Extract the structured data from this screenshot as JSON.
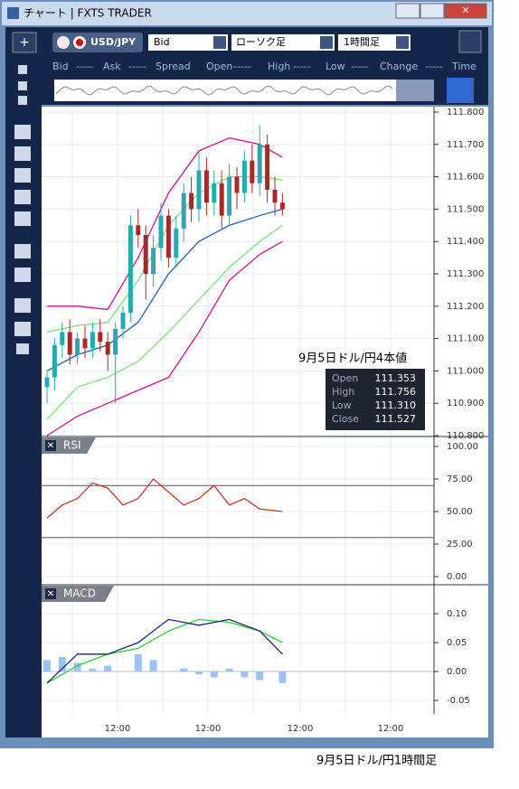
{
  "window": {
    "title": "チャート | FXTS TRADER"
  },
  "toolbar": {
    "symbol": "USD/JPY",
    "price_type": "Bid",
    "chart_type": "ローソク足",
    "period": "1時間足"
  },
  "quote_bar": [
    "Bid",
    "-----",
    "Ask",
    "-----",
    "Spread",
    "Open",
    "-----",
    "High",
    "-----",
    "Low",
    "-----",
    "Change",
    "-----",
    "Time"
  ],
  "main": {
    "ylim": [
      110.8,
      111.8
    ],
    "yticks": [
      {
        "value": 110.8,
        "label": "110.800"
      },
      {
        "value": 110.9,
        "label": "110.900"
      },
      {
        "value": 111.0,
        "label": "111.000"
      },
      {
        "value": 111.1,
        "label": "111.100"
      },
      {
        "value": 111.2,
        "label": "111.200"
      },
      {
        "value": 111.3,
        "label": "111.300"
      },
      {
        "value": 111.4,
        "label": "111.400"
      },
      {
        "value": 111.5,
        "label": "111.500"
      },
      {
        "value": 111.6,
        "label": "111.600"
      },
      {
        "value": 111.7,
        "label": "111.700"
      },
      {
        "value": 111.8,
        "label": "111.800"
      }
    ],
    "open": [
      110.95,
      110.98,
      111.08,
      111.12,
      111.05,
      111.1,
      111.07,
      111.12,
      111.09,
      111.05,
      111.13,
      111.18,
      111.45,
      111.42,
      111.3,
      111.38,
      111.48,
      111.35,
      111.44,
      111.55,
      111.5,
      111.62,
      111.52,
      111.58,
      111.48,
      111.6,
      111.55,
      111.65,
      111.58,
      111.7,
      111.56,
      111.52
    ],
    "high": [
      111.0,
      111.1,
      111.15,
      111.16,
      111.12,
      111.14,
      111.15,
      111.16,
      111.12,
      111.15,
      111.2,
      111.48,
      111.5,
      111.45,
      111.42,
      111.52,
      111.5,
      111.48,
      111.58,
      111.6,
      111.68,
      111.66,
      111.62,
      111.62,
      111.64,
      111.63,
      111.68,
      111.7,
      111.76,
      111.73,
      111.6,
      111.55
    ],
    "low": [
      110.9,
      110.94,
      111.04,
      111.02,
      111.02,
      111.04,
      111.04,
      111.06,
      111.0,
      110.9,
      111.1,
      111.15,
      111.38,
      111.22,
      111.26,
      111.34,
      111.32,
      111.32,
      111.4,
      111.46,
      111.46,
      111.48,
      111.48,
      111.44,
      111.45,
      111.5,
      111.52,
      111.55,
      111.54,
      111.52,
      111.48,
      111.48
    ],
    "close": [
      110.98,
      111.08,
      111.12,
      111.05,
      111.1,
      111.07,
      111.12,
      111.09,
      111.05,
      111.13,
      111.18,
      111.45,
      111.42,
      111.3,
      111.38,
      111.48,
      111.35,
      111.44,
      111.55,
      111.5,
      111.62,
      111.52,
      111.58,
      111.48,
      111.6,
      111.55,
      111.65,
      111.58,
      111.7,
      111.56,
      111.52,
      111.5
    ],
    "line_index": [
      0,
      4,
      8,
      12,
      16,
      20,
      24,
      28,
      31
    ],
    "bands": [
      {
        "color": "#d0108a",
        "values": [
          111.2,
          111.2,
          111.19,
          111.35,
          111.55,
          111.68,
          111.72,
          111.7,
          111.66
        ]
      },
      {
        "color": "#7ee07e",
        "values": [
          111.12,
          111.14,
          111.15,
          111.28,
          111.45,
          111.55,
          111.6,
          111.6,
          111.59
        ]
      },
      {
        "color": "#1f5fbf",
        "values": [
          111.0,
          111.05,
          111.08,
          111.15,
          111.3,
          111.4,
          111.45,
          111.48,
          111.5
        ]
      },
      {
        "color": "#7ee07e",
        "values": [
          110.85,
          110.95,
          110.98,
          111.03,
          111.12,
          111.22,
          111.32,
          111.4,
          111.45
        ]
      },
      {
        "color": "#d0108a",
        "values": [
          110.8,
          110.86,
          110.9,
          110.94,
          110.98,
          111.12,
          111.28,
          111.36,
          111.4
        ]
      }
    ]
  },
  "annotation": "9月5日ドル/円4本値",
  "ohlc": [
    [
      "Open",
      "111.353"
    ],
    [
      "High",
      "111.756"
    ],
    [
      "Low",
      "111.310"
    ],
    [
      "Close",
      "111.527"
    ]
  ],
  "rsi": {
    "name": "RSI",
    "ylim": [
      0,
      100
    ],
    "yticks": [
      {
        "value": 0,
        "label": "0.00"
      },
      {
        "value": 25,
        "label": "25.00"
      },
      {
        "value": 50,
        "label": "50.00"
      },
      {
        "value": 75,
        "label": "75.00"
      },
      {
        "value": 100,
        "label": "100.00"
      }
    ],
    "levels": [
      70,
      30
    ],
    "index": [
      0,
      2,
      4,
      6,
      8,
      10,
      12,
      14,
      16,
      18,
      20,
      22,
      24,
      26,
      28,
      31
    ],
    "values": [
      45,
      55,
      60,
      72,
      68,
      55,
      60,
      75,
      65,
      55,
      60,
      70,
      55,
      60,
      52,
      50
    ]
  },
  "macd": {
    "name": "MACD",
    "ylim": [
      -0.05,
      0.1
    ],
    "yticks": [
      {
        "value": -0.05,
        "label": "-0.05"
      },
      {
        "value": 0,
        "label": "0.00"
      },
      {
        "value": 0.05,
        "label": "0.05"
      },
      {
        "value": 0.1,
        "label": "0.10"
      }
    ],
    "index": [
      0,
      4,
      8,
      12,
      16,
      20,
      24,
      28,
      31
    ],
    "macd": [
      -0.02,
      0.03,
      0.03,
      0.05,
      0.09,
      0.08,
      0.09,
      0.07,
      0.03
    ],
    "signal": [
      -0.02,
      0.01,
      0.03,
      0.04,
      0.07,
      0.09,
      0.085,
      0.07,
      0.05
    ],
    "hist_index": [
      0,
      2,
      4,
      6,
      8,
      10,
      12,
      14,
      16,
      18,
      20,
      22,
      24,
      26,
      28,
      31
    ],
    "hist": [
      0.02,
      0.025,
      0.015,
      0.005,
      0.01,
      0,
      0.03,
      0.02,
      0,
      0.005,
      -0.005,
      -0.01,
      0.005,
      -0.01,
      -0.015,
      -0.02
    ]
  },
  "x_labels": [
    "12:00",
    "12:00",
    "12:00",
    "12:00"
  ],
  "caption": "9月5日ドル/円1時間足"
}
